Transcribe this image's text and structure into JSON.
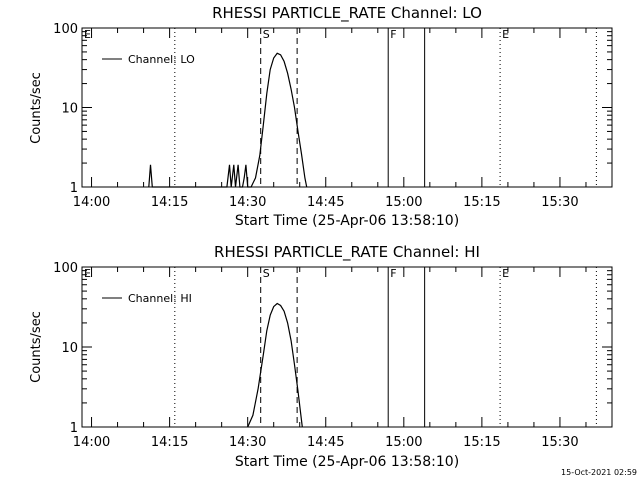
{
  "footer_timestamp": "15-Oct-2021 02:59",
  "chart_data": [
    {
      "type": "line",
      "title": "RHESSI PARTICLE_RATE Channel: LO",
      "xlabel": "Start Time (25-Apr-06 13:58:10)",
      "ylabel": "Counts/sec",
      "y_scale": "log",
      "ylim": [
        1,
        100
      ],
      "xlim": [
        "13:58:10",
        "15:40:00"
      ],
      "y_ticks": [
        "1",
        "10",
        "100"
      ],
      "x_ticks": [
        "14:00",
        "14:15",
        "14:30",
        "14:45",
        "15:00",
        "15:15",
        "15:30"
      ],
      "legend": {
        "position": "top-left",
        "label": "Channel: LO"
      },
      "events": [
        {
          "label": "E",
          "time": "13:58:10",
          "style": "none"
        },
        {
          "label": "",
          "time": "14:16:00",
          "style": "dotted"
        },
        {
          "label": "S",
          "time": "14:32:30",
          "style": "dashed"
        },
        {
          "label": "",
          "time": "14:39:30",
          "style": "dashed"
        },
        {
          "label": "F",
          "time": "14:57:00",
          "style": "solid"
        },
        {
          "label": "",
          "time": "15:04:00",
          "style": "solid"
        },
        {
          "label": "E",
          "time": "15:18:30",
          "style": "dotted"
        },
        {
          "label": "",
          "time": "15:37:00",
          "style": "dotted"
        }
      ],
      "series": [
        {
          "name": "Channel: LO",
          "x": [
            "14:11:00",
            "14:11:20",
            "14:11:40",
            "14:12:00",
            "14:12:30",
            "14:25:30",
            "14:26:00",
            "14:26:30",
            "14:26:50",
            "14:27:20",
            "14:27:40",
            "14:28:10",
            "14:28:30",
            "14:29:00",
            "14:29:20",
            "14:29:40",
            "14:30:00",
            "14:30:40",
            "14:31:30",
            "14:32:20",
            "14:33:00",
            "14:33:40",
            "14:34:20",
            "14:35:00",
            "14:35:40",
            "14:36:20",
            "14:37:00",
            "14:37:40",
            "14:38:20",
            "14:39:00",
            "14:39:40",
            "14:40:20",
            "14:41:00",
            "14:41:20"
          ],
          "y": [
            1,
            1.9,
            1,
            1,
            1,
            1,
            1,
            1.9,
            1,
            1.9,
            1,
            1.9,
            1,
            1,
            1.3,
            1.9,
            1,
            1,
            1.3,
            2.5,
            6,
            15,
            30,
            42,
            48,
            46,
            38,
            27,
            17,
            10,
            5,
            2.6,
            1.3,
            1
          ]
        }
      ]
    },
    {
      "type": "line",
      "title": "RHESSI PARTICLE_RATE Channel: HI",
      "xlabel": "Start Time (25-Apr-06 13:58:10)",
      "ylabel": "Counts/sec",
      "y_scale": "log",
      "ylim": [
        1,
        100
      ],
      "xlim": [
        "13:58:10",
        "15:40:00"
      ],
      "y_ticks": [
        "1",
        "10",
        "100"
      ],
      "x_ticks": [
        "14:00",
        "14:15",
        "14:30",
        "14:45",
        "15:00",
        "15:15",
        "15:30"
      ],
      "legend": {
        "position": "top-left",
        "label": "Channel: HI"
      },
      "events": [
        {
          "label": "E",
          "time": "13:58:10",
          "style": "none"
        },
        {
          "label": "",
          "time": "14:16:00",
          "style": "dotted"
        },
        {
          "label": "S",
          "time": "14:32:30",
          "style": "dashed"
        },
        {
          "label": "",
          "time": "14:39:30",
          "style": "dashed"
        },
        {
          "label": "F",
          "time": "14:57:00",
          "style": "solid"
        },
        {
          "label": "",
          "time": "15:04:00",
          "style": "solid"
        },
        {
          "label": "E",
          "time": "15:18:30",
          "style": "dotted"
        },
        {
          "label": "",
          "time": "15:37:00",
          "style": "dotted"
        }
      ],
      "series": [
        {
          "name": "Channel: HI",
          "x": [
            "14:30:00",
            "14:31:00",
            "14:32:00",
            "14:33:00",
            "14:33:40",
            "14:34:20",
            "14:35:00",
            "14:35:40",
            "14:36:20",
            "14:37:00",
            "14:37:40",
            "14:38:20",
            "14:39:00",
            "14:39:40",
            "14:40:10",
            "14:40:30"
          ],
          "y": [
            1,
            1.4,
            3,
            8,
            16,
            25,
            32,
            35,
            33,
            28,
            20,
            12,
            6,
            2.8,
            1.5,
            1
          ]
        }
      ]
    }
  ]
}
